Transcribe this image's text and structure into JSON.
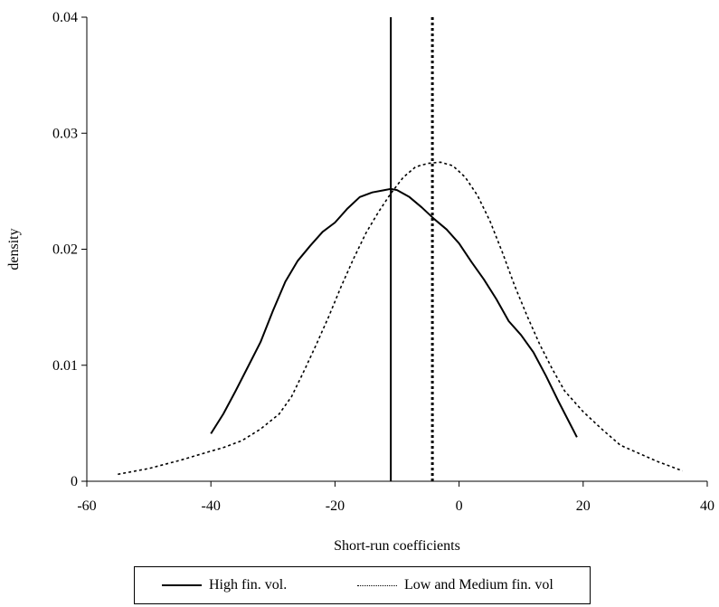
{
  "chart_data": {
    "type": "line",
    "xlabel": "Short-run coefficients",
    "ylabel": "density",
    "xlim": [
      -60,
      40
    ],
    "ylim": [
      0,
      0.04
    ],
    "x_ticks": [
      "-60",
      "-40",
      "-20",
      "0",
      "20",
      "40"
    ],
    "y_ticks": [
      "0",
      "0.01",
      "0.02",
      "0.03",
      "0.04"
    ],
    "grid": false,
    "legend_position": "bottom",
    "series": [
      {
        "name": "High fin. vol.",
        "style": "solid",
        "color": "#000000",
        "x": [
          -40,
          -38,
          -36,
          -34,
          -32,
          -30,
          -28,
          -26,
          -24,
          -22,
          -20,
          -18,
          -16,
          -14,
          -12,
          -11,
          -10,
          -8,
          -6,
          -4,
          -2,
          0,
          2,
          4,
          6,
          8,
          10,
          12,
          14,
          16,
          19
        ],
        "y": [
          0.0041,
          0.0058,
          0.0078,
          0.0099,
          0.012,
          0.0147,
          0.0172,
          0.019,
          0.0203,
          0.0215,
          0.0223,
          0.0235,
          0.0245,
          0.0249,
          0.0251,
          0.0252,
          0.0251,
          0.0245,
          0.0236,
          0.0226,
          0.0217,
          0.0205,
          0.0189,
          0.0174,
          0.0157,
          0.0138,
          0.0126,
          0.0111,
          0.0091,
          0.0069,
          0.0038
        ]
      },
      {
        "name": "Low and Medium fin. vol",
        "style": "dotted",
        "color": "#000000",
        "x": [
          -55,
          -50,
          -45,
          -40,
          -38,
          -35,
          -32,
          -29,
          -27,
          -25,
          -23,
          -21,
          -19,
          -17,
          -15,
          -13,
          -11,
          -9,
          -7,
          -5,
          -3,
          -1,
          1,
          3,
          5,
          7,
          9,
          11,
          13,
          15,
          17,
          20,
          23,
          26,
          29,
          32,
          36
        ],
        "y": [
          0.0006,
          0.0011,
          0.0018,
          0.0026,
          0.0029,
          0.0035,
          0.0045,
          0.0058,
          0.0073,
          0.0095,
          0.0118,
          0.0142,
          0.0168,
          0.0192,
          0.0214,
          0.0232,
          0.0248,
          0.0262,
          0.0271,
          0.0274,
          0.0275,
          0.0272,
          0.0262,
          0.0246,
          0.0224,
          0.0197,
          0.0168,
          0.0142,
          0.0118,
          0.0097,
          0.0078,
          0.006,
          0.0045,
          0.0031,
          0.0024,
          0.0017,
          0.0009
        ]
      }
    ],
    "vertical_lines": [
      {
        "series": "High fin. vol.",
        "x": -11,
        "style": "solid"
      },
      {
        "series": "Low and Medium fin. vol",
        "x": -4.3,
        "style": "dotted"
      }
    ]
  }
}
